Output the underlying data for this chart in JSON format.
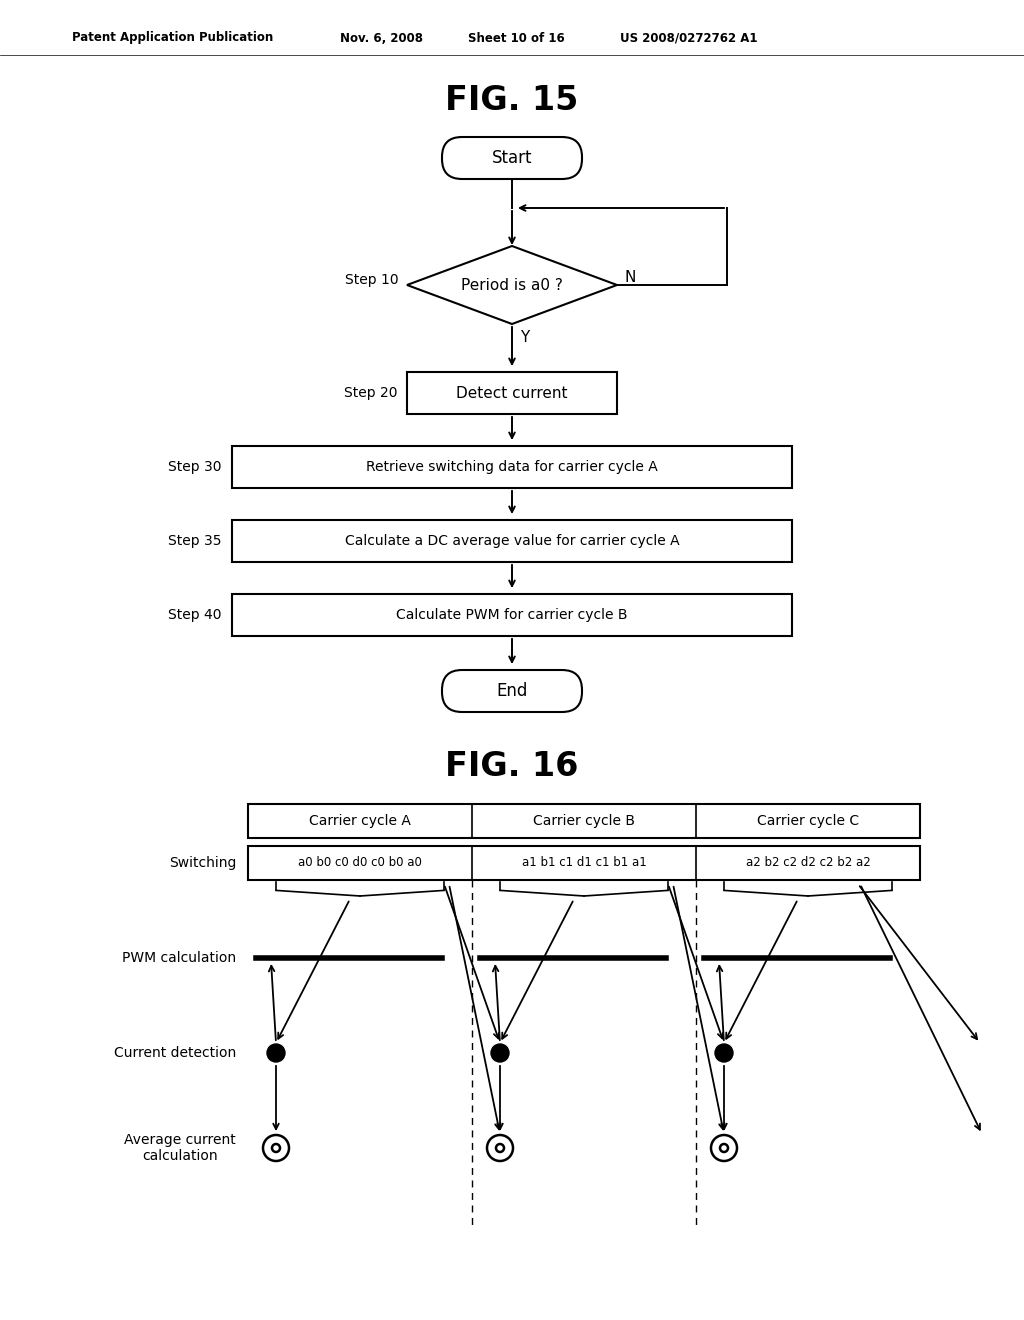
{
  "fig_title_top": "FIG. 15",
  "fig_title_bottom": "FIG. 16",
  "patent_header": "Patent Application Publication",
  "patent_date": "Nov. 6, 2008",
  "patent_sheet": "Sheet 10 of 16",
  "patent_number": "US 2008/0272762 A1",
  "bg_color": "#ffffff",
  "flowchart": {
    "start_text": "Start",
    "end_text": "End",
    "diamond_text": "Period is a0 ?",
    "step10_label": "Step 10",
    "step20_label": "Step 20",
    "step30_label": "Step 30",
    "step35_label": "Step 35",
    "step40_label": "Step 40",
    "step20_text": "Detect current",
    "step30_text": "Retrieve switching data for carrier cycle A",
    "step35_text": "Calculate a DC average value for carrier cycle A",
    "step40_text": "Calculate PWM for carrier cycle B",
    "N_label": "N",
    "Y_label": "Y"
  },
  "timing": {
    "col_headers": [
      "Carrier cycle A",
      "Carrier cycle B",
      "Carrier cycle C"
    ],
    "switching_label": "Switching",
    "switching_textA": "a0 b0 c0 d0 c0 b0 a0",
    "switching_textB": "a1 b1 c1 d1 c1 b1 a1",
    "switching_textC": "a2 b2 c2 d2 c2 b2 a2",
    "pwm_label": "PWM calculation",
    "current_label": "Current detection",
    "avg_label": "Average current\ncalculation"
  }
}
